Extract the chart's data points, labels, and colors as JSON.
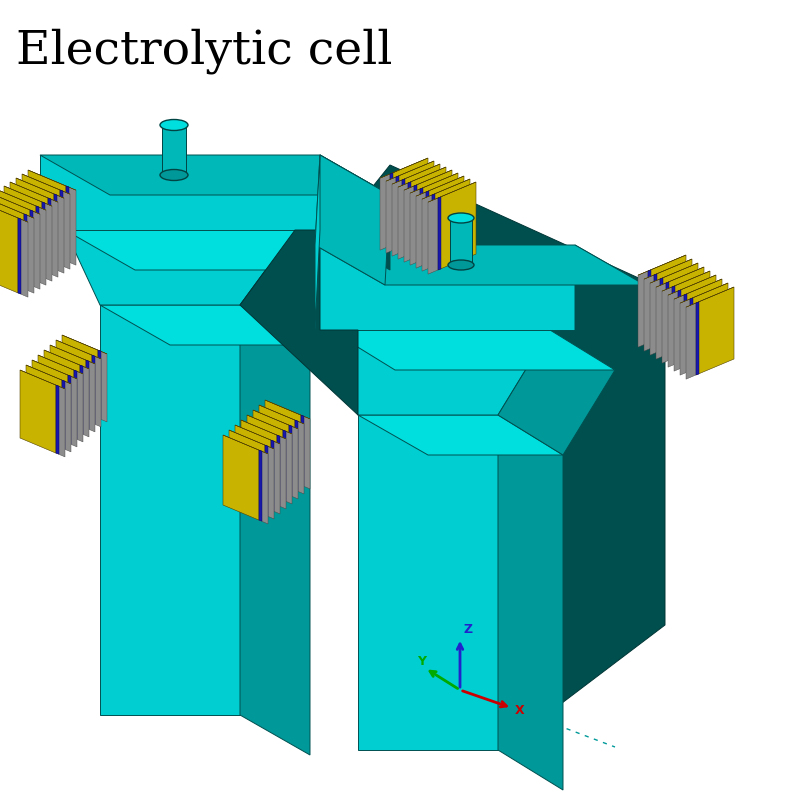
{
  "title": "Electrolytic cell",
  "title_fontsize": 34,
  "bg_color": "#ffffff",
  "C": "#00CED1",
  "CS": "#009898",
  "CD": "#004F4F",
  "CL": "#00DEDE",
  "CT": "#00B8B8",
  "Y": "#C8B400",
  "YD": "#8A7A00",
  "GR": "#8C8C8C",
  "BD": "#1818AA",
  "ax_x": "#CC0000",
  "ax_y": "#00AA00",
  "ax_z": "#2222CC"
}
